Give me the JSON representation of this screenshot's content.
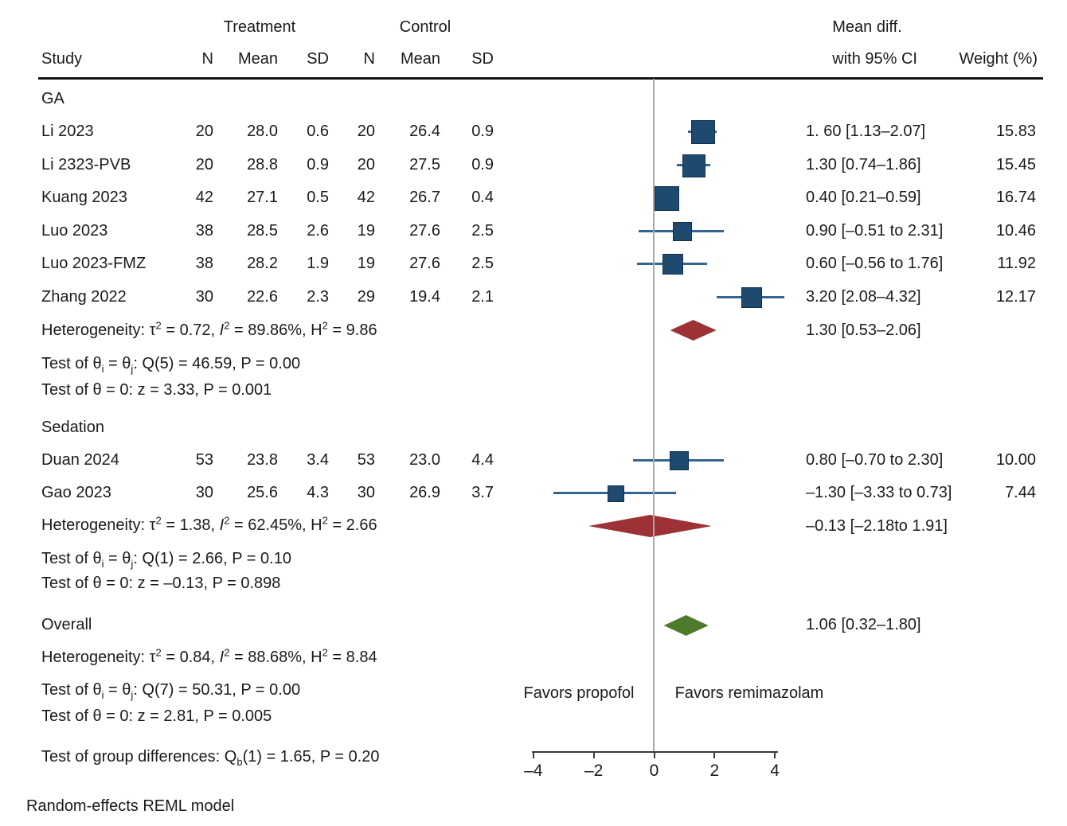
{
  "header": {
    "treatment": "Treatment",
    "control": "Control",
    "study": "Study",
    "n": "N",
    "mean": "Mean",
    "sd": "SD",
    "mean_diff_line1": "Mean diff.",
    "mean_diff_line2": "with 95% CI",
    "weight": "Weight (%)"
  },
  "footer": {
    "model": "Random-effects REML model"
  },
  "colors": {
    "square": "#1f4a70",
    "square_border": "#122f4c",
    "whisker": "#35648e",
    "group_summary": "#9c3236",
    "overall_summary": "#4e7b2b",
    "zero_line": "#a9a9a9",
    "axis": "#3a3a3a",
    "rule": "#151515",
    "text": "#1b1b1b"
  },
  "chart_data": {
    "type": "forest",
    "x_ticks": [
      -4,
      -2,
      0,
      2,
      4
    ],
    "x_tick_labels": [
      "–4",
      "–2",
      "0",
      "2",
      "4"
    ],
    "zero_line": 0,
    "favors_left": "Favors propofol",
    "favors_right": "Favors remimazolam",
    "groups": [
      {
        "label": "GA",
        "studies": [
          {
            "study": "Li 2023",
            "t_n": "20",
            "t_mean": "28.0",
            "t_sd": "0.6",
            "c_n": "20",
            "c_mean": "26.4",
            "c_sd": "0.9",
            "est": 1.6,
            "lo": 1.13,
            "hi": 2.07,
            "ci_text": "1. 60 [1.13–2.07]",
            "weight": "15.83"
          },
          {
            "study": "Li 2323-PVB",
            "t_n": "20",
            "t_mean": "28.8",
            "t_sd": "0.9",
            "c_n": "20",
            "c_mean": "27.5",
            "c_sd": "0.9",
            "est": 1.3,
            "lo": 0.74,
            "hi": 1.86,
            "ci_text": "1.30 [0.74–1.86]",
            "weight": "15.45"
          },
          {
            "study": "Kuang 2023",
            "t_n": "42",
            "t_mean": "27.1",
            "t_sd": "0.5",
            "c_n": "42",
            "c_mean": "26.7",
            "c_sd": "0.4",
            "est": 0.4,
            "lo": 0.21,
            "hi": 0.59,
            "ci_text": "0.40 [0.21–0.59]",
            "weight": "16.74"
          },
          {
            "study": "Luo 2023",
            "t_n": "38",
            "t_mean": "28.5",
            "t_sd": "2.6",
            "c_n": "19",
            "c_mean": "27.6",
            "c_sd": "2.5",
            "est": 0.9,
            "lo": -0.51,
            "hi": 2.31,
            "ci_text": "0.90 [–0.51 to 2.31]",
            "weight": "10.46"
          },
          {
            "study": "Luo 2023-FMZ",
            "t_n": "38",
            "t_mean": "28.2",
            "t_sd": "1.9",
            "c_n": "19",
            "c_mean": "27.6",
            "c_sd": "2.5",
            "est": 0.6,
            "lo": -0.56,
            "hi": 1.76,
            "ci_text": "0.60 [–0.56 to 1.76]",
            "weight": "11.92"
          },
          {
            "study": "Zhang 2022",
            "t_n": "30",
            "t_mean": "22.6",
            "t_sd": "2.3",
            "c_n": "29",
            "c_mean": "19.4",
            "c_sd": "2.1",
            "est": 3.2,
            "lo": 2.08,
            "hi": 4.32,
            "ci_text": "3.20 [2.08–4.32]",
            "weight": "12.17"
          }
        ],
        "summary": {
          "est": 1.3,
          "lo": 0.53,
          "hi": 2.06,
          "ci_text": "1.30 [0.53–2.06]",
          "color": "#9c3236"
        },
        "notes": [
          "Heterogeneity: τ^2^ = 0.72, *I*^2^ = 89.86%, H^2^ = 9.86",
          "Test of θ_i_ = θ_j_: Q(5) = 46.59, P = 0.00",
          "Test of θ = 0: z = 3.33, P = 0.001"
        ]
      },
      {
        "label": "Sedation",
        "studies": [
          {
            "study": "Duan 2024",
            "t_n": "53",
            "t_mean": "23.8",
            "t_sd": "3.4",
            "c_n": "53",
            "c_mean": "23.0",
            "c_sd": "4.4",
            "est": 0.8,
            "lo": -0.7,
            "hi": 2.3,
            "ci_text": "0.80 [–0.70 to 2.30]",
            "weight": "10.00"
          },
          {
            "study": "Gao 2023",
            "t_n": "30",
            "t_mean": "25.6",
            "t_sd": "4.3",
            "c_n": "30",
            "c_mean": "26.9",
            "c_sd": "3.7",
            "est": -1.3,
            "lo": -3.33,
            "hi": 0.73,
            "ci_text": "–1.30 [–3.33 to 0.73]",
            "weight": "7.44"
          }
        ],
        "summary": {
          "est": -0.13,
          "lo": -2.18,
          "hi": 1.91,
          "ci_text": "–0.13 [–2.18to 1.91]",
          "color": "#9c3236"
        },
        "notes": [
          "Heterogeneity: τ^2^ = 1.38, *I*^2^ = 62.45%, H^2^ = 2.66",
          "Test of θ_i_ = θ_j_: Q(1) = 2.66, P = 0.10",
          "Test of θ = 0: z = –0.13, P = 0.898"
        ]
      }
    ],
    "overall": {
      "label": "Overall",
      "summary": {
        "est": 1.06,
        "lo": 0.32,
        "hi": 1.8,
        "ci_text": "1.06 [0.32–1.80]",
        "color": "#4e7b2b"
      },
      "notes": [
        "Heterogeneity: τ^2^ = 0.84, *I*^2^ = 88.68%, H^2^ = 8.84",
        "Test of θ_i_ = θ_j_: Q(7) = 50.31, P = 0.00",
        "Test of θ = 0: z = 2.81, P = 0.005"
      ]
    },
    "group_difference_note": "Test of group differences: Q_b_(1) = 1.65, P = 0.20"
  }
}
